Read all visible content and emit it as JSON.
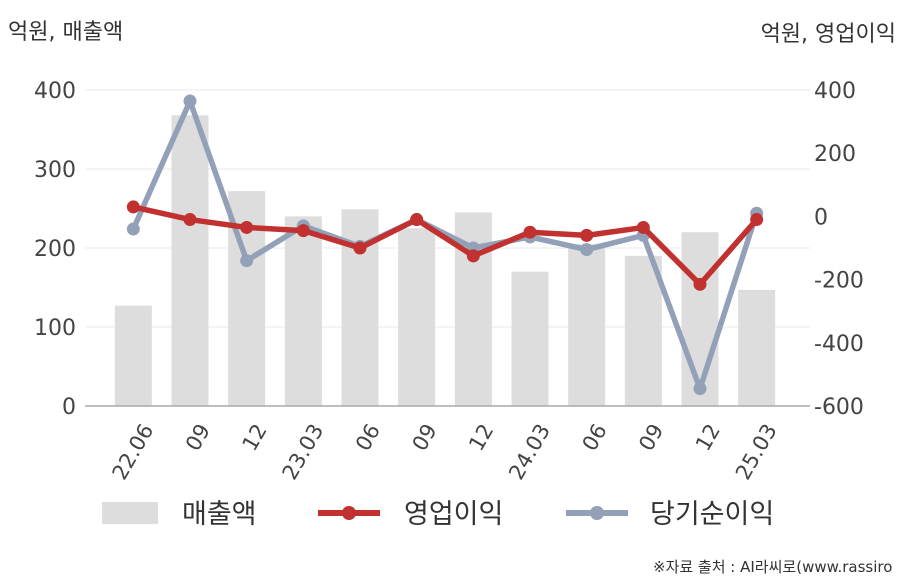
{
  "header": {
    "left_axis_title": "억원, 매출액",
    "right_axis_title": "억원, 영업이익"
  },
  "legend": {
    "sales": "매출액",
    "op_income": "영업이익",
    "net_income": "당기순이익"
  },
  "source": "※자료 출처 : AI라씨로(www.rassiro",
  "colors": {
    "bar": "#dddddd",
    "op_income": "#c0312f",
    "net_income": "#92a0b8",
    "grid": "#e8e8e8",
    "axis": "#aaaaaa"
  },
  "chart_data": {
    "type": "bar+line",
    "categories": [
      "22.06",
      "09",
      "12",
      "23.03",
      "06",
      "09",
      "12",
      "24.03",
      "06",
      "09",
      "12",
      "25.03"
    ],
    "left_axis": {
      "ylim": [
        0,
        400
      ],
      "ticks": [
        0,
        100,
        200,
        300,
        400
      ]
    },
    "right_axis": {
      "ylim": [
        -600,
        400
      ],
      "ticks": [
        -600,
        -400,
        -200,
        0,
        200,
        400
      ]
    },
    "series": [
      {
        "name": "매출액",
        "type": "bar",
        "axis": "left",
        "values": [
          127,
          368,
          272,
          240,
          249,
          225,
          245,
          170,
          205,
          190,
          220,
          147
        ]
      },
      {
        "name": "영업이익",
        "type": "line",
        "axis": "right",
        "values": [
          30,
          -10,
          -35,
          -45,
          -100,
          -10,
          -125,
          -50,
          -60,
          -35,
          -215,
          -10
        ]
      },
      {
        "name": "당기순이익",
        "type": "line",
        "axis": "right",
        "values": [
          -40,
          365,
          -140,
          -30,
          -95,
          -10,
          -100,
          -65,
          -105,
          -60,
          -545,
          10
        ]
      }
    ]
  }
}
